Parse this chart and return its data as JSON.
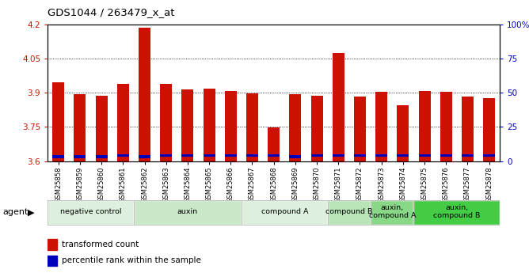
{
  "title": "GDS1044 / 263479_x_at",
  "samples": [
    "GSM25858",
    "GSM25859",
    "GSM25860",
    "GSM25861",
    "GSM25862",
    "GSM25863",
    "GSM25864",
    "GSM25865",
    "GSM25866",
    "GSM25867",
    "GSM25868",
    "GSM25869",
    "GSM25870",
    "GSM25871",
    "GSM25872",
    "GSM25873",
    "GSM25874",
    "GSM25875",
    "GSM25876",
    "GSM25877",
    "GSM25878"
  ],
  "red_values": [
    3.945,
    3.895,
    3.888,
    3.938,
    4.185,
    3.94,
    3.915,
    3.918,
    3.908,
    3.898,
    3.748,
    3.895,
    3.888,
    4.075,
    3.882,
    3.905,
    3.845,
    3.908,
    3.905,
    3.882,
    3.875
  ],
  "blue_heights": [
    0.012,
    0.012,
    0.012,
    0.012,
    0.012,
    0.012,
    0.012,
    0.012,
    0.012,
    0.012,
    0.012,
    0.012,
    0.012,
    0.012,
    0.012,
    0.012,
    0.012,
    0.012,
    0.012,
    0.012,
    0.012
  ],
  "blue_bottoms": [
    3.613,
    3.613,
    3.613,
    3.618,
    3.613,
    3.618,
    3.618,
    3.618,
    3.618,
    3.618,
    3.618,
    3.613,
    3.618,
    3.618,
    3.618,
    3.618,
    3.618,
    3.618,
    3.618,
    3.618,
    3.618
  ],
  "ymin": 3.6,
  "ymax": 4.2,
  "yticks_left": [
    3.6,
    3.75,
    3.9,
    4.05,
    4.2
  ],
  "yticks_right": [
    0,
    25,
    50,
    75,
    100
  ],
  "agent_groups": [
    {
      "label": "negative control",
      "start": 0,
      "end": 4,
      "color": "#ddf0dd"
    },
    {
      "label": "auxin",
      "start": 4,
      "end": 9,
      "color": "#c8e8c8"
    },
    {
      "label": "compound A",
      "start": 9,
      "end": 13,
      "color": "#ddf0dd"
    },
    {
      "label": "compound B",
      "start": 13,
      "end": 15,
      "color": "#b8e4b8"
    },
    {
      "label": "auxin,\ncompound A",
      "start": 15,
      "end": 17,
      "color": "#88d888"
    },
    {
      "label": "auxin,\ncompound B",
      "start": 17,
      "end": 21,
      "color": "#44cc44"
    }
  ],
  "bar_width": 0.55,
  "red_color": "#cc1100",
  "blue_color": "#0000bb",
  "grid_color": "#000000",
  "bg_color": "#ffffff",
  "tick_color_left": "#cc1100",
  "tick_color_right": "#0000bb"
}
